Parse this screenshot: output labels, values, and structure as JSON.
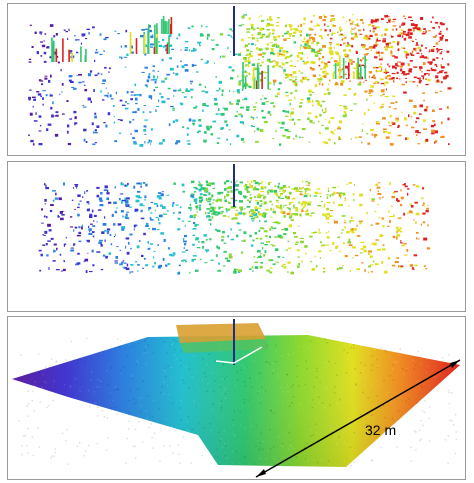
{
  "panels": [
    {
      "id": "sparse-scan-top"
    },
    {
      "id": "sparse-scan-middle"
    },
    {
      "id": "dense-surface-bottom"
    }
  ],
  "scale_label": "32 m",
  "colors": {
    "axis_line": "#1f2a8a",
    "scale_line": "#000000",
    "panel_border": "#9a9a9a"
  }
}
